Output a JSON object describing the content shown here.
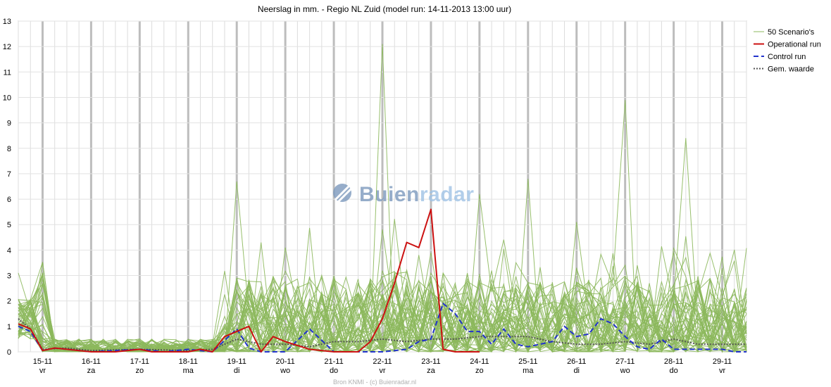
{
  "chart_data": {
    "type": "line",
    "title": "Neerslag in mm. - Regio NL Zuid (model run: 14-11-2013 13:00 uur)",
    "source": "Bron KNMI - (c) Buienradar.nl",
    "watermark": "Buienradar",
    "xlabel": "",
    "ylabel": "",
    "ylim": [
      0,
      13
    ],
    "y_ticks": [
      0,
      1,
      2,
      3,
      4,
      5,
      6,
      7,
      8,
      9,
      10,
      11,
      12,
      13
    ],
    "x_range": [
      -0.5,
      14.5
    ],
    "x_unit": "days since 15-11-2013",
    "grid": true,
    "legend_position": "right",
    "day_labels": [
      {
        "date": "15-11",
        "day": "vr"
      },
      {
        "date": "16-11",
        "day": "za"
      },
      {
        "date": "17-11",
        "day": "zo"
      },
      {
        "date": "18-11",
        "day": "ma"
      },
      {
        "date": "19-11",
        "day": "di"
      },
      {
        "date": "20-11",
        "day": "wo"
      },
      {
        "date": "21-11",
        "day": "do"
      },
      {
        "date": "22-11",
        "day": "vr"
      },
      {
        "date": "23-11",
        "day": "za"
      },
      {
        "date": "24-11",
        "day": "zo"
      },
      {
        "date": "25-11",
        "day": "ma"
      },
      {
        "date": "26-11",
        "day": "di"
      },
      {
        "date": "27-11",
        "day": "wo"
      },
      {
        "date": "28-11",
        "day": "do"
      },
      {
        "date": "29-11",
        "day": "vr"
      }
    ],
    "series": [
      {
        "name": "50 Scenario's",
        "style": "thin-solid",
        "color": "#8cb85c",
        "members": 50,
        "peaks": [
          3.1,
          6.7,
          4.1,
          4.3,
          12.1,
          6.2,
          6.8,
          9.9,
          8.4
        ]
      },
      {
        "name": "Operational run",
        "style": "solid",
        "color": "#cc1111",
        "points": [
          [
            -0.5,
            1.1
          ],
          [
            -0.25,
            0.9
          ],
          [
            0,
            0.05
          ],
          [
            0.25,
            0.15
          ],
          [
            0.5,
            0.1
          ],
          [
            0.75,
            0.05
          ],
          [
            1,
            0
          ],
          [
            1.5,
            0
          ],
          [
            2,
            0.1
          ],
          [
            2.25,
            0
          ],
          [
            3,
            0
          ],
          [
            3.25,
            0.1
          ],
          [
            3.5,
            0
          ],
          [
            3.75,
            0.6
          ],
          [
            4,
            0.8
          ],
          [
            4.25,
            1.0
          ],
          [
            4.5,
            0
          ],
          [
            4.75,
            0.6
          ],
          [
            5,
            0.4
          ],
          [
            5.5,
            0.1
          ],
          [
            6,
            0
          ],
          [
            6.5,
            0
          ],
          [
            6.75,
            0.4
          ],
          [
            7,
            1.3
          ],
          [
            7.25,
            2.7
          ],
          [
            7.5,
            4.3
          ],
          [
            7.75,
            4.1
          ],
          [
            8,
            5.6
          ],
          [
            8.25,
            0.1
          ],
          [
            8.5,
            0
          ],
          [
            9,
            0
          ]
        ]
      },
      {
        "name": "Control run",
        "style": "dashed",
        "color": "#2233cc",
        "points": [
          [
            -0.5,
            1.0
          ],
          [
            -0.25,
            0.8
          ],
          [
            0,
            0.05
          ],
          [
            0.25,
            0.15
          ],
          [
            0.5,
            0.1
          ],
          [
            1,
            0
          ],
          [
            2,
            0.1
          ],
          [
            2.5,
            0
          ],
          [
            3,
            0.1
          ],
          [
            3.5,
            0
          ],
          [
            4,
            0.9
          ],
          [
            4.25,
            0.15
          ],
          [
            4.5,
            0
          ],
          [
            5,
            0
          ],
          [
            5.5,
            0.9
          ],
          [
            6,
            0
          ],
          [
            7,
            0
          ],
          [
            7.5,
            0.1
          ],
          [
            7.75,
            0.4
          ],
          [
            8,
            0.5
          ],
          [
            8.25,
            1.9
          ],
          [
            8.5,
            1.5
          ],
          [
            8.75,
            0.8
          ],
          [
            9,
            0.8
          ],
          [
            9.25,
            0.3
          ],
          [
            9.5,
            0.9
          ],
          [
            9.75,
            0.3
          ],
          [
            10,
            0.2
          ],
          [
            10.5,
            0.4
          ],
          [
            10.75,
            1.0
          ],
          [
            11,
            0.6
          ],
          [
            11.25,
            0.7
          ],
          [
            11.5,
            1.3
          ],
          [
            11.75,
            1.1
          ],
          [
            12,
            0.6
          ],
          [
            12.25,
            0.2
          ],
          [
            12.5,
            0.1
          ],
          [
            12.75,
            0.5
          ],
          [
            13,
            0.1
          ],
          [
            13.5,
            0.1
          ],
          [
            14,
            0.1
          ],
          [
            14.25,
            0
          ],
          [
            14.5,
            0
          ]
        ]
      },
      {
        "name": "Gem. waarde",
        "style": "dotted",
        "color": "#555555",
        "points": [
          [
            -0.5,
            1.3
          ],
          [
            -0.25,
            0.9
          ],
          [
            0,
            0.1
          ],
          [
            0.5,
            0.15
          ],
          [
            1,
            0.05
          ],
          [
            2,
            0.1
          ],
          [
            3,
            0.05
          ],
          [
            3.5,
            0.1
          ],
          [
            4,
            0.5
          ],
          [
            4.5,
            0.3
          ],
          [
            5,
            0.3
          ],
          [
            5.5,
            0.2
          ],
          [
            6,
            0.4
          ],
          [
            6.5,
            0.4
          ],
          [
            7,
            0.5
          ],
          [
            7.5,
            0.4
          ],
          [
            8,
            0.5
          ],
          [
            8.5,
            0.5
          ],
          [
            9,
            0.6
          ],
          [
            9.5,
            0.6
          ],
          [
            10,
            0.6
          ],
          [
            10.5,
            0.4
          ],
          [
            11,
            0.3
          ],
          [
            11.5,
            0.3
          ],
          [
            12,
            0.4
          ],
          [
            12.5,
            0.3
          ],
          [
            13,
            0.5
          ],
          [
            13.5,
            0.3
          ],
          [
            14,
            0.3
          ],
          [
            14.5,
            0.3
          ]
        ]
      }
    ]
  }
}
